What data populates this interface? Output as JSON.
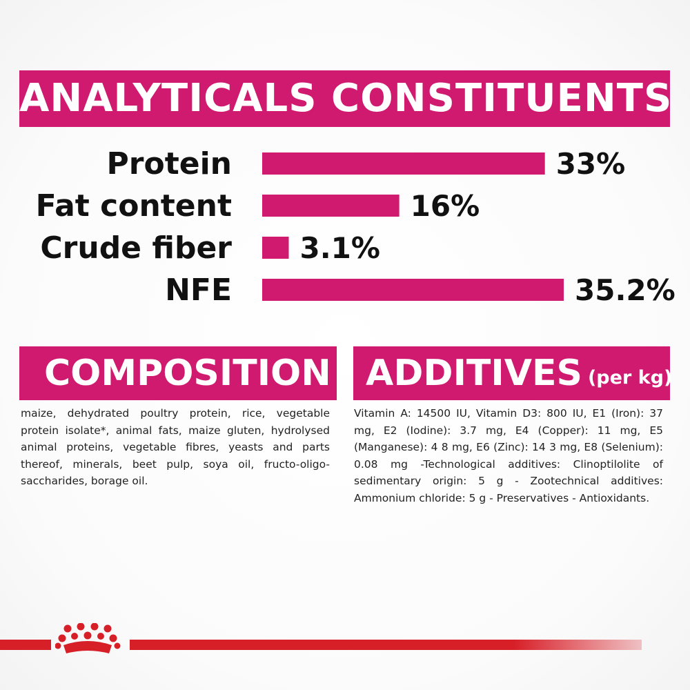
{
  "header": {
    "title": "ANALYTICALS CONSTITUENTS"
  },
  "chart_data": {
    "type": "bar",
    "orientation": "horizontal",
    "title": "ANALYTICALS CONSTITUENTS",
    "categories": [
      "Protein",
      "Fat content",
      "Crude fiber",
      "NFE"
    ],
    "values": [
      33,
      16,
      3.1,
      35.2
    ],
    "value_labels": [
      "33%",
      "16%",
      "3.1%",
      "35.2%"
    ],
    "unit": "%",
    "bar_color": "#cf1a6f",
    "grid": false,
    "xlim": [
      0,
      35.2
    ]
  },
  "composition": {
    "title": "COMPOSITION",
    "text": "maize, dehydrated poultry protein, rice, vegetable protein isolate*, animal fats, maize gluten, hydrolysed animal proteins, vegetable fibres, yeasts and parts thereof, minerals, beet pulp, soya oil, fructo-oligo-saccharides, borage oil."
  },
  "additives": {
    "title": "ADDITIVES",
    "unit": "(per kg)",
    "text": "Vitamin A: 14500 IU, Vitamin D3: 800 IU, E1 (Iron): 37 mg, E2 (Iodine): 3.7 mg, E4 (Copper): 11 mg, E5 (Manganese): 4 8 mg, E6 (Zinc): 14 3 mg, E8 (Selenium): 0.08 mg -Technological additives: Clinoptilolite of sedimentary origin: 5 g - Zootechnical additives: Ammonium chloride: 5 g - Preservatives - Antioxidants."
  },
  "colors": {
    "accent": "#cf1a6f",
    "brand_red": "#d71f28"
  },
  "icons": {
    "brand_logo": "crown-icon"
  }
}
